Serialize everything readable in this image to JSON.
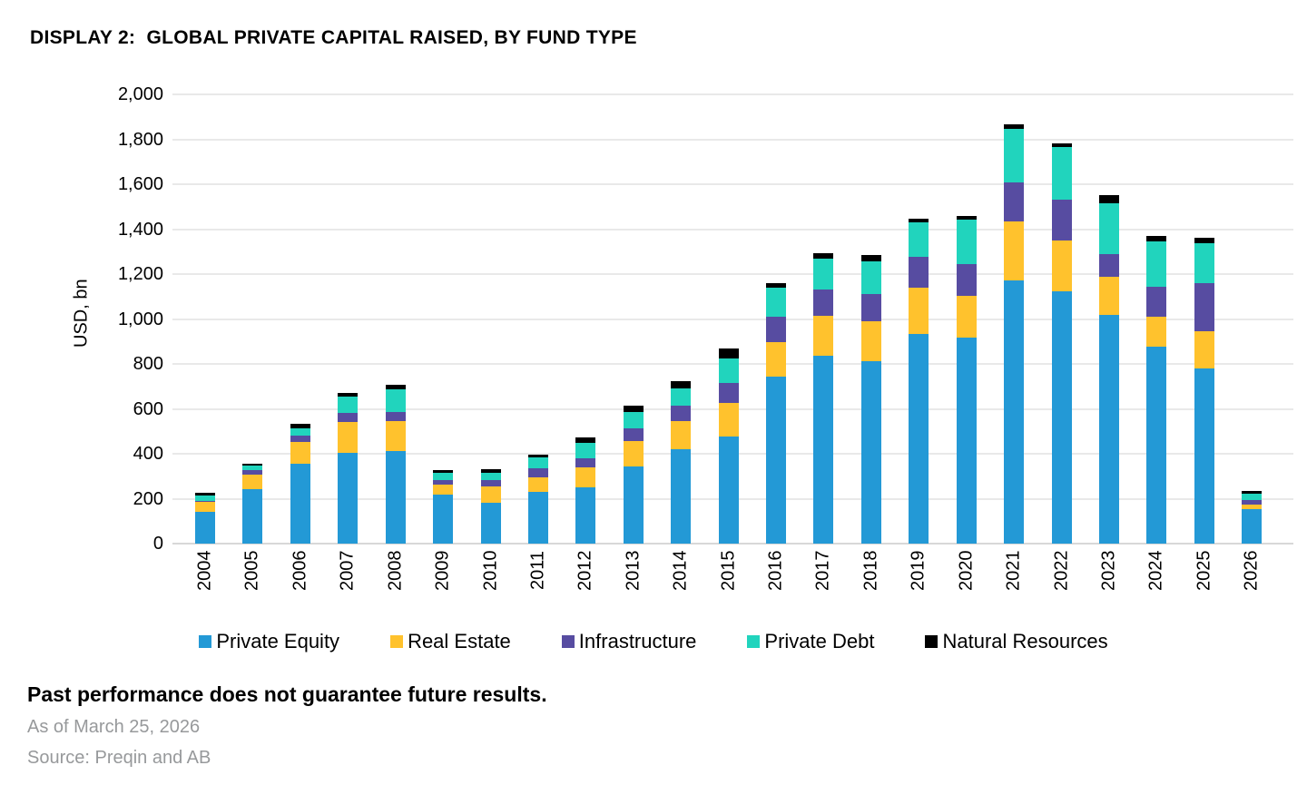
{
  "header": {
    "title": "DISPLAY 2:  GLOBAL PRIVATE CAPITAL RAISED, BY FUND TYPE"
  },
  "chart_data": {
    "type": "bar",
    "stacked": true,
    "title": "DISPLAY 2: GLOBAL PRIVATE CAPITAL RAISED, BY FUND TYPE",
    "xlabel": "",
    "ylabel": "USD, bn",
    "ylim": [
      0,
      2000
    ],
    "ytick_interval": 200,
    "ytick_labels": [
      "0",
      "200",
      "400",
      "600",
      "800",
      "1,000",
      "1,200",
      "1,400",
      "1,600",
      "1,800",
      "2,000"
    ],
    "grid": true,
    "legend_position": "bottom",
    "categories": [
      "2004",
      "2005",
      "2006",
      "2007",
      "2008",
      "2009",
      "2010",
      "2011",
      "2012",
      "2013",
      "2014",
      "2015",
      "2016",
      "2017",
      "2018",
      "2019",
      "2020",
      "2021",
      "2022",
      "2023",
      "2024",
      "2025",
      "2026"
    ],
    "series": [
      {
        "name": "Private Equity",
        "color": "#2399d6",
        "values": [
          140,
          242,
          354,
          405,
          414,
          217,
          180,
          230,
          250,
          343,
          421,
          475,
          744,
          837,
          814,
          933,
          918,
          1170,
          1125,
          1017,
          877,
          780,
          155
        ]
      },
      {
        "name": "Real Estate",
        "color": "#ffc22d",
        "values": [
          45,
          67,
          97,
          135,
          133,
          46,
          74,
          67,
          91,
          115,
          126,
          153,
          152,
          177,
          176,
          205,
          187,
          265,
          225,
          169,
          135,
          165,
          17
        ]
      },
      {
        "name": "Infrastructure",
        "color": "#574ca1",
        "values": [
          5,
          20,
          31,
          42,
          40,
          20,
          27,
          40,
          37,
          55,
          67,
          87,
          114,
          117,
          123,
          138,
          140,
          175,
          182,
          104,
          132,
          216,
          21
        ]
      },
      {
        "name": "Private Debt",
        "color": "#21d4bd",
        "values": [
          25,
          18,
          30,
          72,
          99,
          31,
          36,
          45,
          71,
          73,
          78,
          109,
          128,
          137,
          143,
          155,
          198,
          235,
          234,
          226,
          203,
          176,
          31
        ]
      },
      {
        "name": "Natural Resources",
        "color": "#000000",
        "values": [
          12,
          9,
          20,
          16,
          20,
          14,
          13,
          13,
          23,
          27,
          30,
          46,
          23,
          25,
          27,
          16,
          16,
          20,
          16,
          36,
          24,
          24,
          9
        ]
      }
    ]
  },
  "footer": {
    "disclaimer": "Past performance does not guarantee future results.",
    "as_of": "As of March 25, 2026",
    "source": "Source: Preqin and AB"
  }
}
